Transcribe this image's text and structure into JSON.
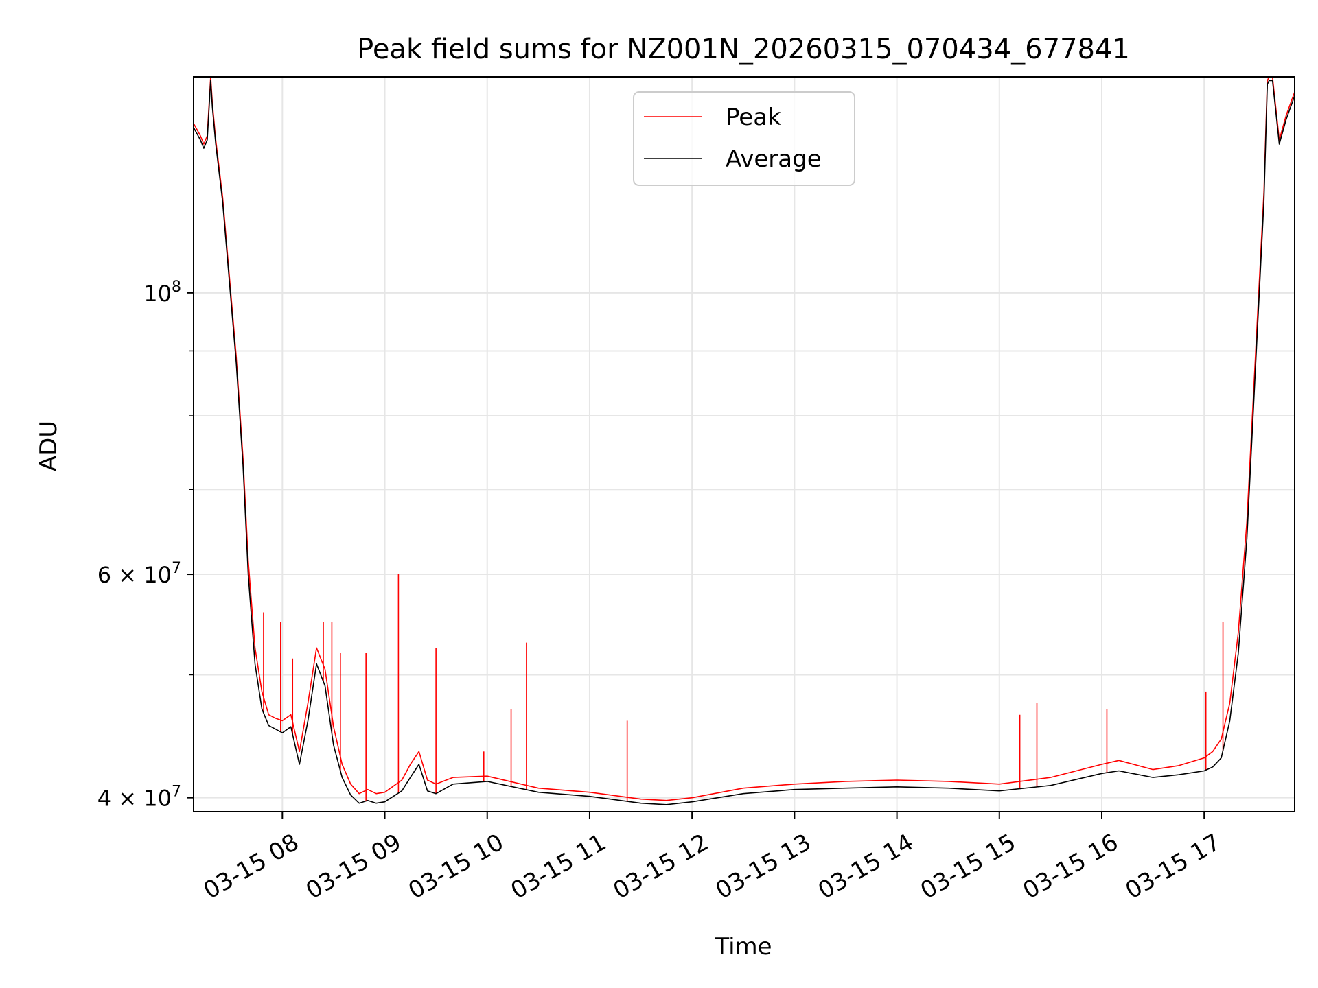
{
  "chart_data": {
    "type": "line",
    "title": "Peak field sums for NZ001N_20260315_070434_677841",
    "xlabel": "Time",
    "ylabel": "ADU",
    "x_axis": "datetime",
    "xlim": [
      "2026-03-15 07:08",
      "2026-03-15 17:53"
    ],
    "ylim": [
      39000000,
      148000000
    ],
    "y_scale": "log",
    "grid": true,
    "legend_position": "top-center",
    "x_ticks": [
      {
        "value": "2026-03-15 08:00",
        "label": "03-15 08"
      },
      {
        "value": "2026-03-15 09:00",
        "label": "03-15 09"
      },
      {
        "value": "2026-03-15 10:00",
        "label": "03-15 10"
      },
      {
        "value": "2026-03-15 11:00",
        "label": "03-15 11"
      },
      {
        "value": "2026-03-15 12:00",
        "label": "03-15 12"
      },
      {
        "value": "2026-03-15 13:00",
        "label": "03-15 13"
      },
      {
        "value": "2026-03-15 14:00",
        "label": "03-15 14"
      },
      {
        "value": "2026-03-15 15:00",
        "label": "03-15 15"
      },
      {
        "value": "2026-03-15 16:00",
        "label": "03-15 16"
      },
      {
        "value": "2026-03-15 17:00",
        "label": "03-15 17"
      }
    ],
    "y_ticks": [
      {
        "value": 40000000,
        "base": "4 × 10",
        "exp": "7"
      },
      {
        "value": 60000000,
        "base": "6 × 10",
        "exp": "7"
      },
      {
        "value": 100000000,
        "base": "10",
        "exp": "8"
      }
    ],
    "y_minor_ticks": [
      50000000,
      70000000,
      80000000,
      90000000,
      200000000
    ],
    "series": [
      {
        "name": "Average",
        "color": "#000000",
        "x": [
          "2026-03-15 07:08",
          "2026-03-15 07:12",
          "2026-03-15 07:14",
          "2026-03-15 07:16",
          "2026-03-15 07:18",
          "2026-03-15 07:19",
          "2026-03-15 07:21",
          "2026-03-15 07:25",
          "2026-03-15 07:29",
          "2026-03-15 07:33",
          "2026-03-15 07:37",
          "2026-03-15 07:40",
          "2026-03-15 07:44",
          "2026-03-15 07:48",
          "2026-03-15 07:52",
          "2026-03-15 07:56",
          "2026-03-15 08:00",
          "2026-03-15 08:05",
          "2026-03-15 08:10",
          "2026-03-15 08:15",
          "2026-03-15 08:20",
          "2026-03-15 08:25",
          "2026-03-15 08:30",
          "2026-03-15 08:35",
          "2026-03-15 08:40",
          "2026-03-15 08:45",
          "2026-03-15 08:50",
          "2026-03-15 08:55",
          "2026-03-15 09:00",
          "2026-03-15 09:10",
          "2026-03-15 09:15",
          "2026-03-15 09:20",
          "2026-03-15 09:25",
          "2026-03-15 09:30",
          "2026-03-15 09:40",
          "2026-03-15 10:00",
          "2026-03-15 10:30",
          "2026-03-15 11:00",
          "2026-03-15 11:30",
          "2026-03-15 11:45",
          "2026-03-15 12:00",
          "2026-03-15 12:30",
          "2026-03-15 13:00",
          "2026-03-15 13:30",
          "2026-03-15 14:00",
          "2026-03-15 14:30",
          "2026-03-15 15:00",
          "2026-03-15 15:30",
          "2026-03-15 16:00",
          "2026-03-15 16:10",
          "2026-03-15 16:30",
          "2026-03-15 16:45",
          "2026-03-15 17:00",
          "2026-03-15 17:05",
          "2026-03-15 17:10",
          "2026-03-15 17:15",
          "2026-03-15 17:20",
          "2026-03-15 17:25",
          "2026-03-15 17:30",
          "2026-03-15 17:35",
          "2026-03-15 17:37",
          "2026-03-15 17:38",
          "2026-03-15 17:40",
          "2026-03-15 17:44",
          "2026-03-15 17:48",
          "2026-03-15 17:53"
        ],
        "y": [
          135000000,
          132000000,
          130000000,
          132000000,
          147000000,
          140000000,
          131000000,
          118000000,
          102000000,
          88000000,
          73000000,
          60000000,
          51000000,
          47000000,
          45600000,
          45300000,
          45000000,
          45500000,
          42500000,
          46000000,
          51000000,
          49000000,
          44000000,
          41500000,
          40200000,
          39600000,
          39800000,
          39600000,
          39700000,
          40500000,
          41500000,
          42500000,
          40500000,
          40300000,
          41000000,
          41200000,
          40400000,
          40100000,
          39600000,
          39500000,
          39700000,
          40300000,
          40600000,
          40700000,
          40800000,
          40700000,
          40500000,
          40900000,
          41800000,
          42000000,
          41500000,
          41700000,
          42000000,
          42300000,
          43000000,
          46000000,
          52000000,
          64000000,
          87000000,
          118000000,
          146000000,
          147000000,
          147000000,
          131000000,
          137000000,
          143000000
        ]
      },
      {
        "name": "Peak",
        "color": "#ff0000",
        "x": [
          "2026-03-15 07:08",
          "2026-03-15 07:12",
          "2026-03-15 07:14",
          "2026-03-15 07:16",
          "2026-03-15 07:18",
          "2026-03-15 07:19",
          "2026-03-15 07:21",
          "2026-03-15 07:25",
          "2026-03-15 07:29",
          "2026-03-15 07:33",
          "2026-03-15 07:37",
          "2026-03-15 07:40",
          "2026-03-15 07:44",
          "2026-03-15 07:48",
          "2026-03-15 07:52",
          "2026-03-15 07:56",
          "2026-03-15 08:00",
          "2026-03-15 08:05",
          "2026-03-15 08:10",
          "2026-03-15 08:15",
          "2026-03-15 08:20",
          "2026-03-15 08:25",
          "2026-03-15 08:30",
          "2026-03-15 08:35",
          "2026-03-15 08:40",
          "2026-03-15 08:45",
          "2026-03-15 08:50",
          "2026-03-15 08:55",
          "2026-03-15 09:00",
          "2026-03-15 09:10",
          "2026-03-15 09:15",
          "2026-03-15 09:20",
          "2026-03-15 09:25",
          "2026-03-15 09:30",
          "2026-03-15 09:40",
          "2026-03-15 10:00",
          "2026-03-15 10:30",
          "2026-03-15 11:00",
          "2026-03-15 11:30",
          "2026-03-15 11:45",
          "2026-03-15 12:00",
          "2026-03-15 12:30",
          "2026-03-15 13:00",
          "2026-03-15 13:30",
          "2026-03-15 14:00",
          "2026-03-15 14:30",
          "2026-03-15 15:00",
          "2026-03-15 15:30",
          "2026-03-15 16:00",
          "2026-03-15 16:10",
          "2026-03-15 16:30",
          "2026-03-15 16:45",
          "2026-03-15 17:00",
          "2026-03-15 17:05",
          "2026-03-15 17:10",
          "2026-03-15 17:15",
          "2026-03-15 17:20",
          "2026-03-15 17:25",
          "2026-03-15 17:30",
          "2026-03-15 17:35",
          "2026-03-15 17:37",
          "2026-03-15 17:38",
          "2026-03-15 17:40",
          "2026-03-15 17:44",
          "2026-03-15 17:48",
          "2026-03-15 17:53"
        ],
        "y": [
          136000000,
          133000000,
          131000000,
          133000000,
          148000000,
          141000000,
          132000000,
          119000000,
          103000000,
          89000000,
          74000000,
          61500000,
          52500000,
          48500000,
          46500000,
          46200000,
          46000000,
          46500000,
          43500000,
          47500000,
          52500000,
          50500000,
          45500000,
          42500000,
          41000000,
          40300000,
          40600000,
          40300000,
          40400000,
          41300000,
          42500000,
          43500000,
          41300000,
          41000000,
          41500000,
          41600000,
          40700000,
          40400000,
          39900000,
          39800000,
          40000000,
          40700000,
          41000000,
          41200000,
          41300000,
          41200000,
          41000000,
          41500000,
          42500000,
          42800000,
          42100000,
          42400000,
          43000000,
          43500000,
          44500000,
          47500000,
          54000000,
          66000000,
          89000000,
          120000000,
          147000000,
          148000000,
          148000000,
          132000000,
          138000000,
          144000000
        ]
      }
    ],
    "spikes": {
      "series": "Peak",
      "x": [
        "2026-03-15 07:49",
        "2026-03-15 07:59",
        "2026-03-15 08:06",
        "2026-03-15 08:24",
        "2026-03-15 08:29",
        "2026-03-15 08:34",
        "2026-03-15 08:49",
        "2026-03-15 09:08",
        "2026-03-15 09:30",
        "2026-03-15 09:58",
        "2026-03-15 10:14",
        "2026-03-15 10:23",
        "2026-03-15 11:22",
        "2026-03-15 15:12",
        "2026-03-15 15:22",
        "2026-03-15 16:03",
        "2026-03-15 17:01",
        "2026-03-15 17:11"
      ],
      "y": [
        56000000,
        55000000,
        51500000,
        55000000,
        55000000,
        52000000,
        52000000,
        60000000,
        52500000,
        43500000,
        47000000,
        53000000,
        46000000,
        46500000,
        47500000,
        47000000,
        48500000,
        55000000
      ]
    }
  }
}
